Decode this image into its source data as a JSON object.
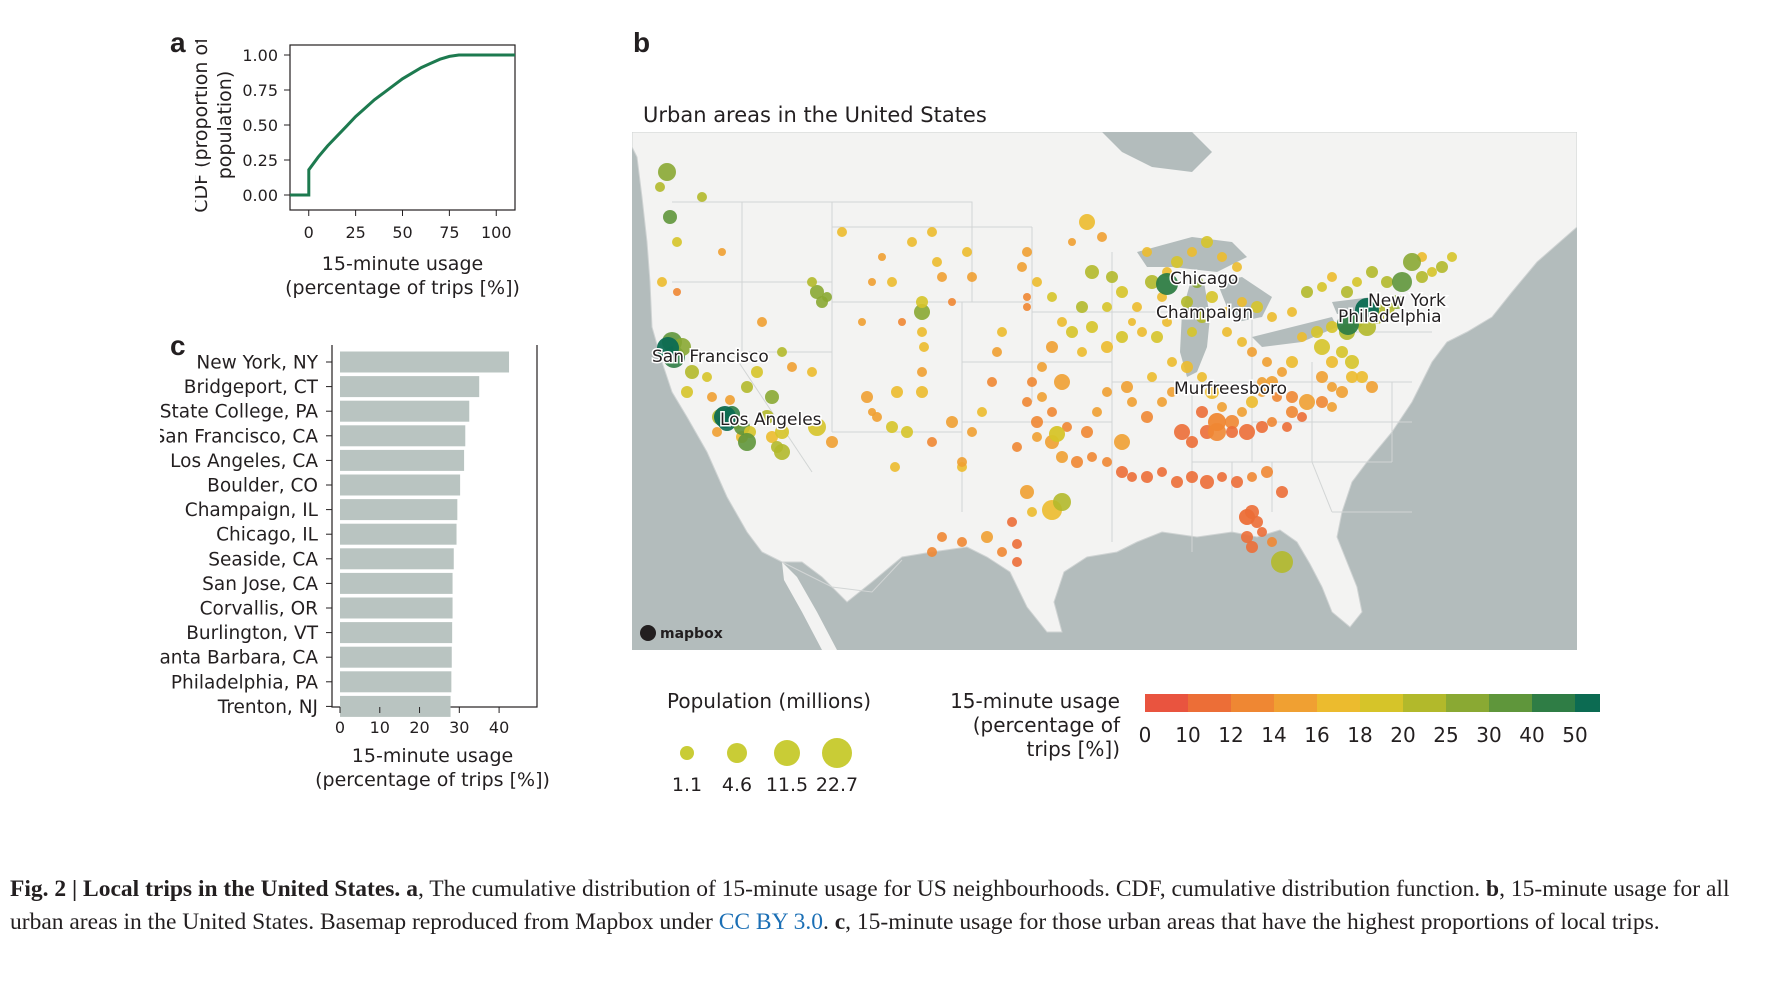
{
  "panels": {
    "a": "a",
    "b": "b",
    "c": "c"
  },
  "chart_data": [
    {
      "id": "a",
      "type": "line",
      "ylabel": "CDF (proportion of population)",
      "xlabel": "15-minute usage (percentage of trips [%])",
      "xlabel_lines": [
        "15-minute usage",
        "(percentage of trips [%])"
      ],
      "ylabel_lines": [
        "CDF (proportion of",
        "population)"
      ],
      "xlim": [
        -10,
        110
      ],
      "ylim": [
        0,
        1
      ],
      "xticks": [
        "0",
        "25",
        "50",
        "75",
        "100"
      ],
      "xtick_values": [
        0,
        25,
        50,
        75,
        100
      ],
      "yticks": [
        "0.00",
        "0.25",
        "0.50",
        "0.75",
        "1.00"
      ],
      "ytick_values": [
        0,
        0.25,
        0.5,
        0.75,
        1.0
      ],
      "series": [
        {
          "color": "#1d7a4f",
          "x": [
            -10,
            0,
            0,
            5,
            10,
            15,
            20,
            25,
            30,
            35,
            40,
            45,
            50,
            55,
            60,
            65,
            70,
            75,
            80,
            85,
            90,
            95,
            100,
            110
          ],
          "y": [
            0,
            0,
            0.18,
            0.27,
            0.35,
            0.42,
            0.49,
            0.56,
            0.62,
            0.68,
            0.73,
            0.78,
            0.83,
            0.87,
            0.91,
            0.94,
            0.97,
            0.99,
            1.0,
            1.0,
            1.0,
            1.0,
            1.0,
            1.0
          ]
        }
      ],
      "grid": false
    },
    {
      "id": "b",
      "type": "scatter",
      "title": "Urban areas in the United States",
      "basemap_credit": "mapbox",
      "city_labels": [
        "San Francisco",
        "Los Angeles",
        "Chicago",
        "Champaign",
        "New York",
        "Philadelphia",
        "Murfreesboro"
      ],
      "size_legend": {
        "title": "Population (millions)",
        "values": [
          "1.1",
          "4.6",
          "11.5",
          "22.7"
        ]
      },
      "color_legend": {
        "title_lines": [
          "15-minute usage",
          "(percentage of",
          "trips [%])"
        ],
        "ticks": [
          "0",
          "10",
          "12",
          "14",
          "16",
          "18",
          "20",
          "25",
          "30",
          "40",
          "50"
        ],
        "colors": [
          "#e9543f",
          "#ec6e37",
          "#ef8733",
          "#f0a032",
          "#ecbb2e",
          "#d6c429",
          "#b2b92b",
          "#8aa933",
          "#5f963b",
          "#2f7d45",
          "#0c6b52"
        ]
      }
    },
    {
      "id": "c",
      "type": "bar",
      "orientation": "horizontal",
      "categories": [
        "New York, NY",
        "Bridgeport, CT",
        "State College, PA",
        "San Francisco, CA",
        "Los Angeles, CA",
        "Boulder, CO",
        "Champaign, IL",
        "Chicago, IL",
        "Seaside, CA",
        "San Jose, CA",
        "Corvallis, OR",
        "Burlington, VT",
        "Santa Barbara, CA",
        "Philadelphia, PA",
        "Trenton, NJ"
      ],
      "values": [
        42.5,
        35,
        32.5,
        31.5,
        31.2,
        30.2,
        29.5,
        29.3,
        28.6,
        28.3,
        28.3,
        28.2,
        28.1,
        28.0,
        27.8
      ],
      "xlabel": "15-minute usage (percentage of trips [%])",
      "xlabel_lines": [
        "15-minute usage",
        "(percentage of trips [%])"
      ],
      "xlim": [
        0,
        44
      ],
      "xticks": [
        "0",
        "10",
        "20",
        "30",
        "40"
      ],
      "xtick_values": [
        0,
        10,
        20,
        30,
        40
      ],
      "bar_color": "#b9c4c1",
      "grid": false
    }
  ],
  "caption": {
    "fig_label": "Fig. 2 | Local trips in the United States.",
    "a_label": "a",
    "a_text": ", The cumulative distribution of 15-minute usage for US neighbourhoods. CDF, cumulative distribution function.",
    "b_label": "b",
    "b_text": ", 15-minute usage for all urban areas in the United States. Basemap reproduced from Mapbox under",
    "link": "CC BY 3.0",
    "c_label": "c",
    "c_text": ", 15-minute usage for those urban areas that have the highest proportions of local trips."
  }
}
